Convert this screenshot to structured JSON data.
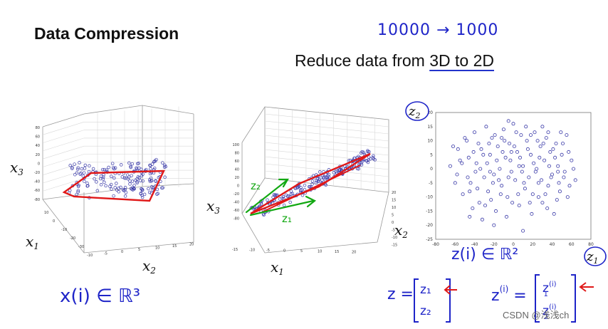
{
  "slide": {
    "title": "Data Compression",
    "subtitle_pre": "Reduce data from ",
    "subtitle_emph": "3D to 2D",
    "handwritten_note": "10000 → 1000"
  },
  "plot3d_left": {
    "xlabel": "x",
    "xlabel_sub": "2",
    "ylabel": "x",
    "ylabel_sub": "1",
    "zlabel": "x",
    "zlabel_sub": "3",
    "z_ticks": [
      "80",
      "60",
      "40",
      "20",
      "0",
      "-20",
      "-40",
      "-60",
      "-80"
    ],
    "x_ticks": [
      "-10",
      "-5",
      "0",
      "5",
      "10",
      "15",
      "20"
    ],
    "y_ticks": [
      "10",
      "0",
      "-10",
      "-20",
      "-30"
    ],
    "annotation_math": "x(i) ∈ ℝ³"
  },
  "plot3d_mid": {
    "xlabel": "x",
    "xlabel_sub": "1",
    "ylabel": "x",
    "ylabel_sub": "2",
    "zlabel": "x",
    "zlabel_sub": "3",
    "z_ticks": [
      "100",
      "80",
      "60",
      "40",
      "20",
      "0",
      "-20",
      "-40",
      "-60",
      "-80"
    ],
    "x_ticks": [
      "-15",
      "-10",
      "-5",
      "0",
      "5",
      "10",
      "15",
      "20"
    ],
    "y_ticks": [
      "20",
      "15",
      "10",
      "5",
      "0",
      "-5",
      "-10",
      "-15"
    ],
    "green_labels": [
      "z₂",
      "z₁"
    ]
  },
  "chart_data": {
    "type": "scatter",
    "title": "",
    "xlabel": "z",
    "xlabel_sub": "1",
    "ylabel": "z",
    "ylabel_sub": "2",
    "xlim": [
      -80,
      80
    ],
    "ylim": [
      -25,
      20
    ],
    "x_ticks": [
      "-80",
      "-60",
      "-40",
      "-20",
      "0",
      "20",
      "40",
      "60",
      "80"
    ],
    "y_ticks": [
      "20",
      "15",
      "10",
      "5",
      "0",
      "-5",
      "-10",
      "-15",
      "-20",
      "-25"
    ],
    "points": [
      [
        -62,
        8
      ],
      [
        -55,
        3
      ],
      [
        -48,
        10
      ],
      [
        -44,
        -5
      ],
      [
        -40,
        13
      ],
      [
        -38,
        2
      ],
      [
        -35,
        -12
      ],
      [
        -33,
        7
      ],
      [
        -30,
        -3
      ],
      [
        -28,
        15
      ],
      [
        -26,
        -8
      ],
      [
        -24,
        5
      ],
      [
        -22,
        11
      ],
      [
        -20,
        -2
      ],
      [
        -18,
        -15
      ],
      [
        -16,
        8
      ],
      [
        -14,
        0
      ],
      [
        -12,
        -6
      ],
      [
        -10,
        14
      ],
      [
        -8,
        4
      ],
      [
        -6,
        -10
      ],
      [
        -4,
        9
      ],
      [
        -2,
        -1
      ],
      [
        0,
        16
      ],
      [
        2,
        -4
      ],
      [
        4,
        6
      ],
      [
        6,
        -13
      ],
      [
        8,
        12
      ],
      [
        10,
        1
      ],
      [
        12,
        -7
      ],
      [
        14,
        10
      ],
      [
        16,
        -3
      ],
      [
        18,
        5
      ],
      [
        20,
        -9
      ],
      [
        22,
        13
      ],
      [
        24,
        0
      ],
      [
        26,
        -5
      ],
      [
        28,
        8
      ],
      [
        30,
        -12
      ],
      [
        32,
        3
      ],
      [
        34,
        11
      ],
      [
        36,
        -6
      ],
      [
        38,
        6
      ],
      [
        40,
        -2
      ],
      [
        42,
        -16
      ],
      [
        44,
        9
      ],
      [
        46,
        1
      ],
      [
        48,
        -8
      ],
      [
        50,
        5
      ],
      [
        52,
        -3
      ],
      [
        55,
        12
      ],
      [
        58,
        -6
      ],
      [
        60,
        3
      ],
      [
        -58,
        -2
      ],
      [
        -52,
        -9
      ],
      [
        -46,
        4
      ],
      [
        -42,
        -14
      ],
      [
        -36,
        9
      ],
      [
        -32,
        -18
      ],
      [
        -27,
        2
      ],
      [
        -23,
        -11
      ],
      [
        -19,
        12
      ],
      [
        -15,
        -4
      ],
      [
        -11,
        6
      ],
      [
        -7,
        -17
      ],
      [
        -3,
        3
      ],
      [
        1,
        8
      ],
      [
        5,
        -9
      ],
      [
        9,
        -1
      ],
      [
        13,
        15
      ],
      [
        17,
        -12
      ],
      [
        21,
        2
      ],
      [
        25,
        10
      ],
      [
        29,
        -4
      ],
      [
        33,
        -9
      ],
      [
        37,
        1
      ],
      [
        41,
        7
      ],
      [
        45,
        -11
      ],
      [
        49,
        13
      ],
      [
        53,
        -1
      ],
      [
        -50,
        11
      ],
      [
        -47,
        -3
      ],
      [
        -41,
        6
      ],
      [
        -37,
        -7
      ],
      [
        -34,
        0
      ],
      [
        -29,
        -13
      ],
      [
        -25,
        9
      ],
      [
        -21,
        -5
      ],
      [
        -17,
        3
      ],
      [
        -13,
        -9
      ],
      [
        -9,
        10
      ],
      [
        -5,
        -3
      ],
      [
        -1,
        -12
      ],
      [
        3,
        13
      ],
      [
        7,
        4
      ],
      [
        11,
        -5
      ],
      [
        15,
        7
      ],
      [
        19,
        -16
      ],
      [
        23,
        -1
      ],
      [
        27,
        4
      ],
      [
        31,
        9
      ],
      [
        35,
        -14
      ],
      [
        39,
        -3
      ],
      [
        43,
        4
      ],
      [
        47,
        -5
      ],
      [
        51,
        9
      ],
      [
        56,
        -10
      ],
      [
        62,
        0
      ],
      [
        -65,
        1
      ],
      [
        -60,
        -5
      ],
      [
        -57,
        7
      ],
      [
        -53,
        2
      ],
      [
        -45,
        -8
      ],
      [
        -39,
        -1
      ],
      [
        -31,
        5
      ],
      [
        -24,
        -1
      ],
      [
        -12,
        11
      ],
      [
        -2,
        6
      ],
      [
        6,
        1
      ],
      [
        18,
        12
      ],
      [
        26,
        -10
      ],
      [
        36,
        13
      ],
      [
        46,
        -1
      ],
      [
        57,
        6
      ],
      [
        64,
        -4
      ],
      [
        -20,
        -20
      ],
      [
        10,
        -22
      ],
      [
        -5,
        17
      ],
      [
        30,
        15
      ],
      [
        -45,
        -17
      ]
    ]
  },
  "annotations": {
    "z_vector_label": "z",
    "z_vector_entries": [
      "z₁",
      "z₂"
    ],
    "zi_label": "z",
    "zi_sup": "(i)",
    "zi_entries_top": "z",
    "zi_entries_top_sup": "(i)",
    "zi_entries_top_sub": "1",
    "zi_entries_bottom": "z",
    "zi_entries_bottom_sup": "(i)",
    "zi_entries_bottom_sub": "2",
    "zi_membership": "z(i) ∈ ℝ²",
    "circled_z1": "z₁",
    "circled_z2": "z₂"
  },
  "watermark": "CSDN @浅浅ch",
  "colors": {
    "ink_blue": "#1e24c8",
    "ink_red": "#e01818",
    "ink_green": "#12a812",
    "point_blue": "#3a3aa8",
    "grid": "#c8c8c8"
  }
}
